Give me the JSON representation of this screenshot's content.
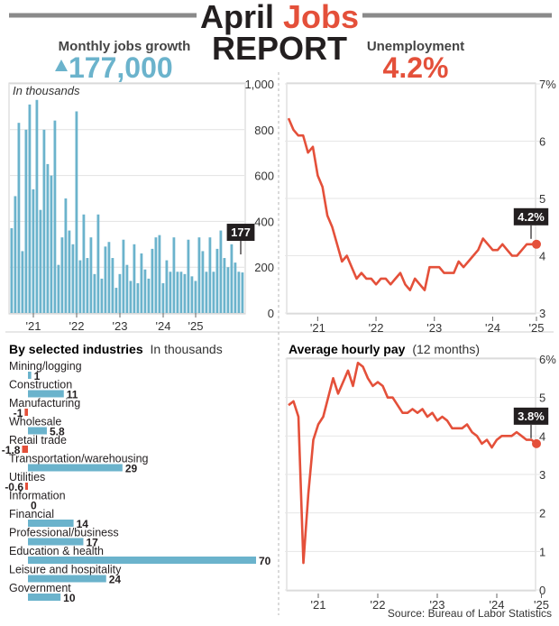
{
  "header": {
    "title_part1": "April",
    "title_part2": "Jobs",
    "title_line2": "REPORT",
    "jobs_label": "Monthly jobs growth",
    "jobs_value": "177,000",
    "unemp_label": "Unemployment",
    "unemp_value": "4.2%"
  },
  "colors": {
    "blue": "#6bb3cc",
    "red": "#e4503a",
    "dark": "#231f20"
  },
  "source": "Source: Bureau of Labor Statistics",
  "chart_data": [
    {
      "id": "jobs",
      "type": "bar",
      "title": "Monthly jobs growth",
      "ylabel": "In thousands",
      "ylim": [
        0,
        1000
      ],
      "yticks": [
        "1,000",
        "800",
        "600",
        "400",
        "200",
        "0"
      ],
      "ytick_values": [
        1000,
        800,
        600,
        400,
        200,
        0
      ],
      "xtick_labels": [
        "'21",
        "'22",
        "'23",
        "'24",
        "'25"
      ],
      "xtick_index": [
        6,
        18,
        30,
        42,
        51
      ],
      "callout": "177",
      "values": [
        370,
        510,
        830,
        270,
        800,
        910,
        540,
        930,
        450,
        800,
        650,
        600,
        840,
        210,
        330,
        500,
        360,
        300,
        880,
        230,
        430,
        240,
        330,
        170,
        430,
        150,
        290,
        310,
        240,
        110,
        170,
        320,
        210,
        140,
        300,
        130,
        260,
        190,
        150,
        280,
        330,
        340,
        130,
        230,
        180,
        330,
        180,
        180,
        170,
        320,
        160,
        140,
        330,
        270,
        180,
        330,
        180,
        280,
        360,
        240,
        200,
        300,
        220,
        180,
        177
      ]
    },
    {
      "id": "unemployment",
      "type": "line",
      "title": "Unemployment",
      "ylim": [
        3,
        7
      ],
      "yticks": [
        "7%",
        "6",
        "5",
        "4",
        "3"
      ],
      "ytick_values": [
        7,
        6,
        5,
        4,
        3
      ],
      "xtick_labels": [
        "'21",
        "'22",
        "'23",
        "'24",
        "'25"
      ],
      "xtick_index": [
        6,
        18,
        30,
        42,
        51
      ],
      "callout": "4.2%",
      "values": [
        6.4,
        6.2,
        6.1,
        6.1,
        5.8,
        5.9,
        5.4,
        5.2,
        4.7,
        4.5,
        4.2,
        3.9,
        4.0,
        3.8,
        3.6,
        3.7,
        3.6,
        3.6,
        3.5,
        3.6,
        3.6,
        3.5,
        3.6,
        3.7,
        3.5,
        3.4,
        3.6,
        3.5,
        3.4,
        3.8,
        3.8,
        3.8,
        3.7,
        3.7,
        3.7,
        3.9,
        3.8,
        3.9,
        4.0,
        4.1,
        4.3,
        4.2,
        4.1,
        4.1,
        4.2,
        4.1,
        4.0,
        4.0,
        4.1,
        4.2,
        4.2,
        4.2
      ]
    },
    {
      "id": "industries",
      "type": "bar",
      "title": "By selected industries",
      "unit_label": "In thousands",
      "categories": [
        "Mining/logging",
        "Construction",
        "Manufacturing",
        "Wholesale",
        "Retail trade",
        "Transportation/warehousing",
        "Utilities",
        "Information",
        "Financial",
        "Professional/business",
        "Education & health",
        "Leisure and hospitality",
        "Government"
      ],
      "values": [
        1,
        11,
        -1,
        5.8,
        -1.8,
        29,
        -0.6,
        0,
        14,
        17,
        70,
        24,
        10
      ],
      "value_labels": [
        "1",
        "11",
        "-1",
        "5.8",
        "-1.8",
        "29",
        "-0.6",
        "0",
        "14",
        "17",
        "70",
        "24",
        "10"
      ]
    },
    {
      "id": "hourly_pay",
      "type": "line",
      "title": "Average hourly pay",
      "subtitle": "(12 months)",
      "ylim": [
        0,
        6
      ],
      "yticks": [
        "6%",
        "5",
        "4",
        "3",
        "2",
        "1",
        "0"
      ],
      "ytick_values": [
        6,
        5,
        4,
        3,
        2,
        1,
        0
      ],
      "xtick_labels": [
        "'21",
        "'22",
        "'23",
        "'24",
        "'25"
      ],
      "xtick_index": [
        6,
        18,
        30,
        42,
        51
      ],
      "callout": "3.8%",
      "values": [
        4.8,
        4.9,
        4.5,
        0.7,
        2.5,
        3.9,
        4.3,
        4.5,
        5.0,
        5.5,
        5.1,
        5.4,
        5.7,
        5.3,
        5.9,
        5.8,
        5.5,
        5.3,
        5.4,
        5.3,
        5.0,
        5.0,
        4.8,
        4.6,
        4.6,
        4.7,
        4.6,
        4.7,
        4.5,
        4.6,
        4.4,
        4.5,
        4.4,
        4.2,
        4.2,
        4.2,
        4.3,
        4.1,
        4.0,
        3.8,
        3.9,
        3.7,
        3.9,
        4.0,
        4.0,
        4.0,
        4.1,
        4.0,
        3.9,
        3.9,
        3.8
      ]
    }
  ]
}
